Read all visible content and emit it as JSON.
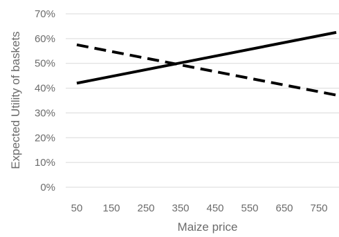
{
  "chart_data": {
    "type": "line",
    "title": "",
    "xlabel": "Maize price",
    "ylabel": "Expected Utility  of baskets",
    "x": [
      50,
      150,
      250,
      350,
      450,
      550,
      650,
      750
    ],
    "x_range": [
      50,
      800
    ],
    "y_ticks": [
      "0%",
      "10%",
      "20%",
      "30%",
      "40%",
      "50%",
      "60%",
      "70%"
    ],
    "ylim": [
      0,
      0.7
    ],
    "grid": true,
    "legend": "none",
    "series": [
      {
        "style": "solid",
        "color": "#000000",
        "points": [
          [
            50,
            0.42
          ],
          [
            800,
            0.625
          ]
        ]
      },
      {
        "style": "dashed",
        "color": "#000000",
        "points": [
          [
            50,
            0.575
          ],
          [
            800,
            0.372
          ]
        ]
      }
    ]
  }
}
